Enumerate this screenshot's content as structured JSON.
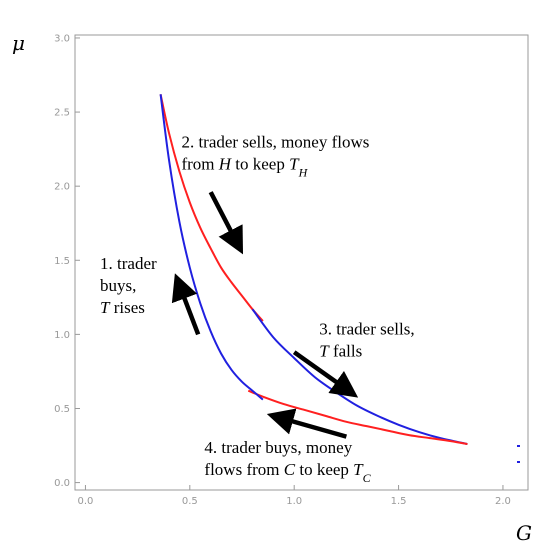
{
  "chart_data": {
    "type": "line",
    "title": "",
    "xlabel": "G",
    "ylabel": "μ",
    "xlim": [
      -0.05,
      2.12
    ],
    "ylim": [
      -0.05,
      3.02
    ],
    "x_ticks": [
      "0.0",
      "0.5",
      "1.0",
      "1.5",
      "2.0"
    ],
    "y_ticks": [
      "0.0",
      "0.5",
      "1.0",
      "1.5",
      "2.0",
      "2.5",
      "3.0"
    ],
    "grid": false,
    "legend": "none",
    "colors": {
      "red": "#ff2020",
      "blue": "#2020e0",
      "arrow": "#000000",
      "frame": "#999999"
    },
    "series": [
      {
        "color": "red",
        "x": [
          0.36,
          0.4,
          0.45,
          0.5,
          0.55,
          0.6,
          0.65,
          0.7,
          0.75,
          0.8,
          0.85
        ],
        "y": [
          2.62,
          2.36,
          2.1,
          1.89,
          1.72,
          1.58,
          1.45,
          1.35,
          1.26,
          1.17,
          1.09
        ]
      },
      {
        "color": "blue",
        "x": [
          0.8,
          0.9,
          1.0,
          1.1,
          1.2,
          1.3,
          1.4,
          1.5,
          1.6,
          1.7,
          1.83
        ],
        "y": [
          1.17,
          0.98,
          0.84,
          0.71,
          0.61,
          0.52,
          0.45,
          0.39,
          0.34,
          0.3,
          0.26
        ]
      },
      {
        "color": "red",
        "x": [
          0.78,
          0.85,
          0.95,
          1.05,
          1.15,
          1.25,
          1.35,
          1.45,
          1.55,
          1.65,
          1.75,
          1.83
        ],
        "y": [
          0.62,
          0.58,
          0.53,
          0.49,
          0.45,
          0.41,
          0.38,
          0.35,
          0.32,
          0.3,
          0.28,
          0.26
        ]
      },
      {
        "color": "blue",
        "x": [
          0.36,
          0.4,
          0.45,
          0.5,
          0.55,
          0.6,
          0.65,
          0.7,
          0.75,
          0.8,
          0.85
        ],
        "y": [
          2.62,
          2.18,
          1.76,
          1.45,
          1.21,
          1.02,
          0.87,
          0.76,
          0.68,
          0.62,
          0.56
        ]
      }
    ],
    "annotations": [
      {
        "id": "step1",
        "lines": [
          [
            "1. trader"
          ],
          [
            "buys,"
          ],
          [
            {
              "t": "T",
              "i": true
            },
            " rises"
          ]
        ],
        "text_pos": [
          0.07,
          1.44
        ],
        "arrow": [
          [
            0.54,
            1.0
          ],
          [
            0.44,
            1.37
          ]
        ]
      },
      {
        "id": "step2",
        "lines": [
          [
            "2. trader sells, money flows"
          ],
          [
            "from ",
            {
              "t": "H",
              "i": true
            },
            " to keep ",
            {
              "t": "T",
              "i": true,
              "sub": "H"
            }
          ]
        ],
        "text_pos": [
          0.46,
          2.26
        ],
        "arrow": [
          [
            0.6,
            1.96
          ],
          [
            0.74,
            1.58
          ]
        ]
      },
      {
        "id": "step3",
        "lines": [
          [
            "3. trader sells,"
          ],
          [
            {
              "t": "T",
              "i": true
            },
            " falls"
          ]
        ],
        "text_pos": [
          1.12,
          1.0
        ],
        "arrow": [
          [
            1.0,
            0.88
          ],
          [
            1.28,
            0.6
          ]
        ]
      },
      {
        "id": "step4",
        "lines": [
          [
            "4. trader buys, money"
          ],
          [
            "flows from ",
            {
              "t": "C",
              "i": true
            },
            " to keep ",
            {
              "t": "T",
              "i": true,
              "sub": "C"
            }
          ]
        ],
        "text_pos": [
          0.57,
          0.2
        ],
        "arrow": [
          [
            1.25,
            0.31
          ],
          [
            0.9,
            0.45
          ]
        ]
      }
    ]
  }
}
